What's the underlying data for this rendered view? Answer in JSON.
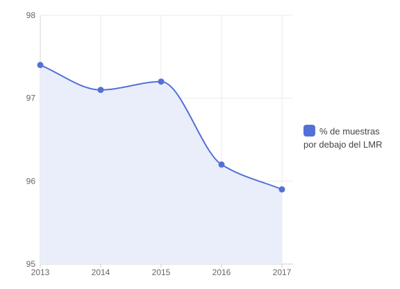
{
  "chart_data": {
    "type": "area",
    "x": [
      "2013",
      "2014",
      "2015",
      "2016",
      "2017"
    ],
    "series": [
      {
        "name": "% de muestras por debajo del LMR",
        "values": [
          97.4,
          97.1,
          97.2,
          96.2,
          95.9
        ],
        "color": "#5470d6",
        "fill": "#eaeefb"
      }
    ],
    "yticks": [
      "95",
      "96",
      "97",
      "98"
    ],
    "ylim": [
      95,
      98
    ],
    "grid": true,
    "legend_position": "right",
    "title": "",
    "xlabel": "",
    "ylabel": ""
  },
  "legend": {
    "label": "% de muestras por debajo del LMR"
  }
}
